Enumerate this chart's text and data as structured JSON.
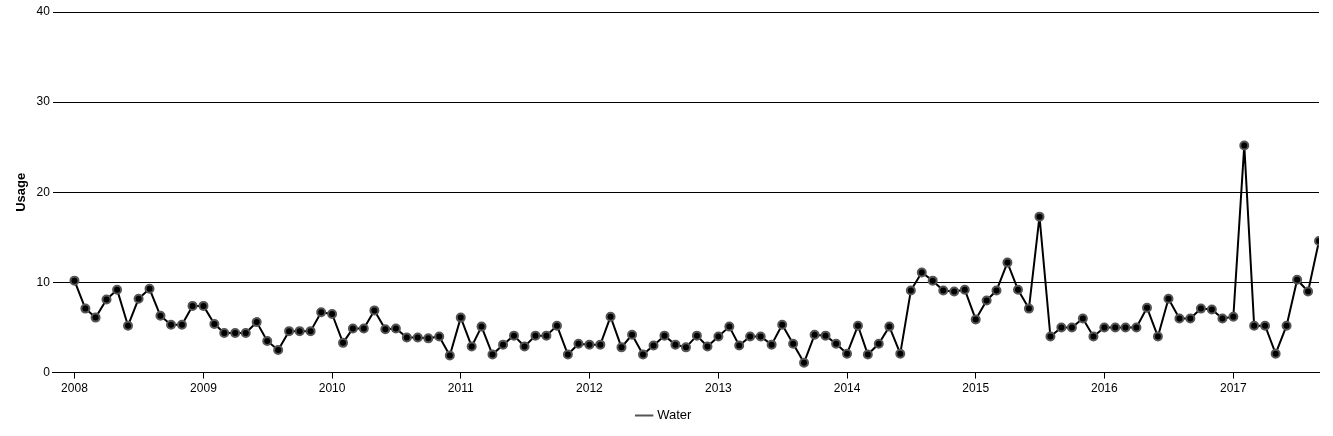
{
  "chart_data": {
    "type": "line",
    "ylabel": "Usage",
    "x": [
      "2008-01",
      "2008-02",
      "2008-03",
      "2008-04",
      "2008-05",
      "2008-06",
      "2008-07",
      "2008-08",
      "2008-09",
      "2008-10",
      "2008-11",
      "2008-12",
      "2009-01",
      "2009-02",
      "2009-03",
      "2009-04",
      "2009-05",
      "2009-06",
      "2009-07",
      "2009-08",
      "2009-09",
      "2009-10",
      "2009-11",
      "2009-12",
      "2010-01",
      "2010-02",
      "2010-03",
      "2010-04",
      "2010-05",
      "2010-06",
      "2010-07",
      "2010-08",
      "2010-09",
      "2010-10",
      "2010-11",
      "2010-12",
      "2011-01",
      "2011-02",
      "2011-03",
      "2011-04",
      "2011-05",
      "2011-06",
      "2011-07",
      "2011-08",
      "2011-09",
      "2011-10",
      "2011-11",
      "2011-12",
      "2012-01",
      "2012-02",
      "2012-03",
      "2012-04",
      "2012-05",
      "2012-06",
      "2012-07",
      "2012-08",
      "2012-09",
      "2012-10",
      "2012-11",
      "2012-12",
      "2013-01",
      "2013-02",
      "2013-03",
      "2013-04",
      "2013-05",
      "2013-06",
      "2013-07",
      "2013-08",
      "2013-09",
      "2013-10",
      "2013-11",
      "2013-12",
      "2014-01",
      "2014-02",
      "2014-03",
      "2014-04",
      "2014-05",
      "2014-06",
      "2014-07",
      "2014-08",
      "2014-09",
      "2014-10",
      "2014-11",
      "2014-12",
      "2015-01",
      "2015-02",
      "2015-03",
      "2015-04",
      "2015-05",
      "2015-06",
      "2015-07",
      "2015-08",
      "2015-09",
      "2015-10",
      "2015-11",
      "2015-12",
      "2016-01",
      "2016-02",
      "2016-03",
      "2016-04",
      "2016-05",
      "2016-06",
      "2016-07",
      "2016-08",
      "2016-09",
      "2016-10",
      "2016-11",
      "2016-12",
      "2017-01",
      "2017-02",
      "2017-03",
      "2017-04",
      "2017-05",
      "2017-06",
      "2017-07",
      "2017-08",
      "2017-09"
    ],
    "series": [
      {
        "name": "Water",
        "color": "#000000",
        "values": [
          10.2,
          7.1,
          6.1,
          8.1,
          9.2,
          5.2,
          8.2,
          9.3,
          6.3,
          5.3,
          5.3,
          7.4,
          7.4,
          5.4,
          4.4,
          4.4,
          4.4,
          5.6,
          3.5,
          2.5,
          4.6,
          4.6,
          4.6,
          6.7,
          6.5,
          3.3,
          4.9,
          4.9,
          6.9,
          4.8,
          4.9,
          3.9,
          3.9,
          3.8,
          4.0,
          1.9,
          6.1,
          2.9,
          5.1,
          2.0,
          3.1,
          4.1,
          2.9,
          4.1,
          4.1,
          5.2,
          2.0,
          3.2,
          3.1,
          3.1,
          6.2,
          2.8,
          4.2,
          2.0,
          3.0,
          4.1,
          3.1,
          2.8,
          4.1,
          2.9,
          4.0,
          5.1,
          3.0,
          4.0,
          4.0,
          3.1,
          5.3,
          3.2,
          1.1,
          4.2,
          4.1,
          3.2,
          2.1,
          5.2,
          2.0,
          3.2,
          5.1,
          2.1,
          9.1,
          11.1,
          10.2,
          9.1,
          9.0,
          9.2,
          5.9,
          8.0,
          9.1,
          12.2,
          9.2,
          7.1,
          17.3,
          4.0,
          5.0,
          5.0,
          6.0,
          4.0,
          5.0,
          5.0,
          5.0,
          5.0,
          7.2,
          4.0,
          8.2,
          6.0,
          6.0,
          7.1,
          7.0,
          6.0,
          6.2,
          25.2,
          5.2,
          5.2,
          2.1,
          5.2,
          10.3,
          9.0,
          14.6
        ]
      }
    ],
    "xlim": [
      "2007-11",
      "2017-09"
    ],
    "xticks": [
      "2008",
      "2009",
      "2010",
      "2011",
      "2012",
      "2013",
      "2014",
      "2015",
      "2016",
      "2017"
    ],
    "ylim": [
      0,
      40
    ],
    "yticks": [
      0,
      10,
      20,
      30,
      40
    ],
    "grid": "y",
    "legend": "bottom",
    "marker": "circle",
    "line_style": "solid"
  }
}
